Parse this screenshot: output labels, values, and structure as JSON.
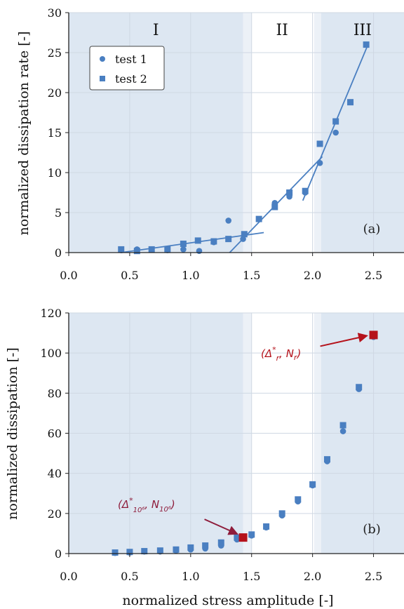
{
  "chart_data": [
    {
      "type": "scatter",
      "panel_label": "(a)",
      "xlim": [
        0.0,
        2.75
      ],
      "ylim": [
        0,
        30
      ],
      "xticks": [
        "0.0",
        "0.5",
        "1.0",
        "1.5",
        "2.0",
        "2.5"
      ],
      "yticks": [
        "0",
        "5",
        "10",
        "15",
        "20",
        "25",
        "30"
      ],
      "xlabel": "",
      "ylabel": "normalized dissipation rate [-]",
      "regions": [
        {
          "label": "I",
          "x0": 0.0,
          "x1": 1.43
        },
        {
          "label": "II",
          "x0": 1.43,
          "x1": 2.07
        },
        {
          "label": "III",
          "x0": 2.07,
          "x1": 2.75
        }
      ],
      "legend_position": "top-left",
      "series": [
        {
          "name": "test 1",
          "marker": "circle",
          "x": [
            0.43,
            0.56,
            0.68,
            0.81,
            0.94,
            1.07,
            1.19,
            1.31,
            1.43,
            1.69,
            1.81,
            1.94,
            2.06,
            2.19
          ],
          "y": [
            0.3,
            0.4,
            0.4,
            0.3,
            0.4,
            0.2,
            1.3,
            4.0,
            1.7,
            6.2,
            7.0,
            7.5,
            11.2,
            15.0
          ]
        },
        {
          "name": "test 2",
          "marker": "square",
          "x": [
            0.43,
            0.56,
            0.68,
            0.81,
            0.94,
            1.06,
            1.19,
            1.31,
            1.44,
            1.56,
            1.69,
            1.81,
            1.94,
            2.06,
            2.19,
            2.31,
            2.44
          ],
          "y": [
            0.4,
            0.2,
            0.4,
            0.4,
            1.1,
            1.5,
            1.4,
            1.7,
            2.3,
            4.2,
            5.7,
            7.5,
            7.7,
            13.6,
            16.4,
            18.8,
            26.0
          ]
        }
      ],
      "fit_lines": [
        {
          "x": [
            0.43,
            1.6
          ],
          "y": [
            0.0,
            2.5
          ]
        },
        {
          "x": [
            1.32,
            2.08
          ],
          "y": [
            0.0,
            12.0
          ]
        },
        {
          "x": [
            1.92,
            2.46
          ],
          "y": [
            6.5,
            26.2
          ]
        }
      ]
    },
    {
      "type": "scatter",
      "panel_label": "(b)",
      "xlim": [
        0.0,
        2.75
      ],
      "ylim": [
        0,
        120
      ],
      "xticks": [
        "0.0",
        "0.5",
        "1.0",
        "1.5",
        "2.0",
        "2.5"
      ],
      "yticks": [
        "0",
        "20",
        "40",
        "60",
        "80",
        "100",
        "120"
      ],
      "xlabel": "normalized stress amplitude [-]",
      "ylabel": "normalized dissipation [-]",
      "regions": [
        {
          "label": "",
          "x0": 0.0,
          "x1": 1.43
        },
        {
          "label": "",
          "x0": 1.43,
          "x1": 2.07
        },
        {
          "label": "",
          "x0": 2.07,
          "x1": 2.75
        }
      ],
      "series": [
        {
          "name": "test 1",
          "marker": "circle",
          "x": [
            0.38,
            0.5,
            0.62,
            0.75,
            0.88,
            1.0,
            1.12,
            1.25,
            1.38,
            1.5,
            1.62,
            1.75,
            1.88,
            2.0,
            2.12,
            2.25,
            2.38,
            2.5
          ],
          "y": [
            0.3,
            0.5,
            1.0,
            1.0,
            1.5,
            2.0,
            2.5,
            4.0,
            7.0,
            9.0,
            13.0,
            19.0,
            26.0,
            34.0,
            46.0,
            61.0,
            82.0,
            108.0
          ]
        },
        {
          "name": "test 2",
          "marker": "square",
          "x": [
            0.38,
            0.5,
            0.62,
            0.75,
            0.88,
            1.0,
            1.12,
            1.25,
            1.38,
            1.5,
            1.62,
            1.75,
            1.88,
            2.0,
            2.12,
            2.25,
            2.38,
            2.5
          ],
          "y": [
            0.5,
            0.8,
            1.2,
            1.5,
            2.0,
            3.0,
            4.0,
            5.5,
            8.0,
            9.5,
            13.5,
            20.0,
            27.0,
            34.5,
            47.0,
            64.0,
            83.0,
            109.0
          ]
        }
      ],
      "highlights": [
        {
          "x": 1.43,
          "y": 8.0,
          "color": "#b5121b"
        },
        {
          "x": 2.5,
          "y": 109.0,
          "color": "#b5121b"
        }
      ],
      "annotations": [
        {
          "target_x": 1.43,
          "target_y": 8.0,
          "color": "#8e1c3b",
          "text_parts": [
            "(Δ",
            "*",
            "10⁶",
            ", N",
            "10⁶",
            ")"
          ]
        },
        {
          "target_x": 2.5,
          "target_y": 109.0,
          "color": "#b5121b",
          "text_parts": [
            "(Δ",
            "*",
            "r",
            ", N",
            "r",
            ")"
          ]
        }
      ]
    }
  ],
  "legend": {
    "entries": [
      "test 1",
      "test 2"
    ]
  },
  "colors": {
    "region_fill": "#dde7f2",
    "marker": "#4a7fc1",
    "grid": "#cfd8e3",
    "highlight": "#b5121b",
    "annotation_purple": "#8e1c3b"
  }
}
